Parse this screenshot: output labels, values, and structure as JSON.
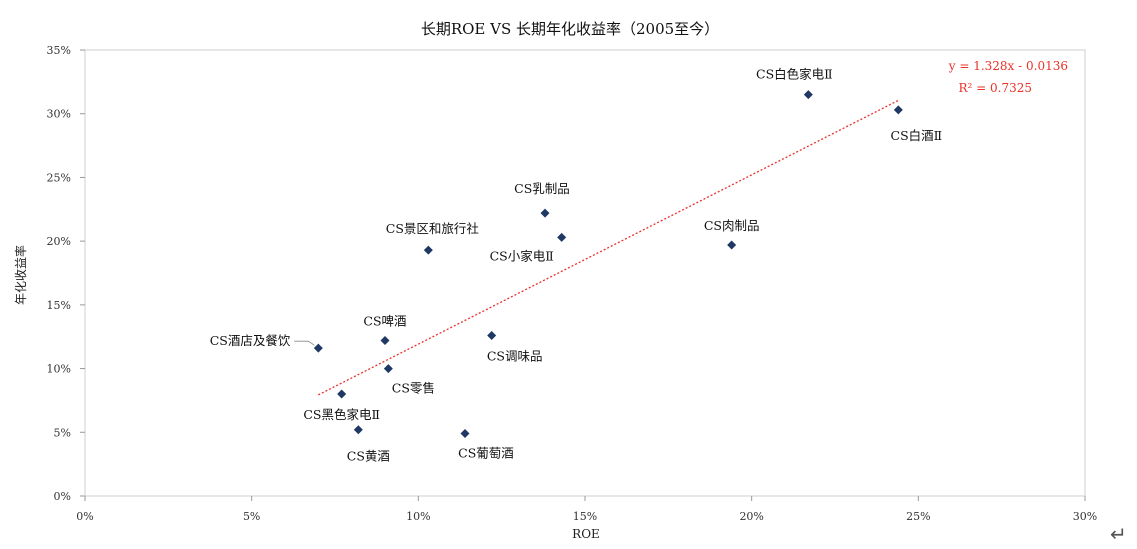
{
  "chart_data": {
    "type": "scatter",
    "title": "长期ROE VS 长期年化收益率（2005至今）",
    "xlabel": "ROE",
    "ylabel": "年化收益率",
    "xlim": [
      0,
      0.3
    ],
    "ylim": [
      0,
      0.35
    ],
    "x_ticks": [
      "0%",
      "5%",
      "10%",
      "15%",
      "20%",
      "25%",
      "30%"
    ],
    "y_ticks": [
      "0%",
      "5%",
      "10%",
      "15%",
      "20%",
      "25%",
      "30%",
      "35%"
    ],
    "grid": false,
    "marker_color": "#1f3864",
    "points": [
      {
        "label": "CS白色家电Ⅱ",
        "x": 0.217,
        "y": 0.315
      },
      {
        "label": "CS白酒Ⅱ",
        "x": 0.244,
        "y": 0.303
      },
      {
        "label": "CS乳制品",
        "x": 0.138,
        "y": 0.222
      },
      {
        "label": "CS小家电Ⅱ",
        "x": 0.143,
        "y": 0.203
      },
      {
        "label": "CS景区和旅行社",
        "x": 0.103,
        "y": 0.193
      },
      {
        "label": "CS肉制品",
        "x": 0.194,
        "y": 0.197
      },
      {
        "label": "CS啤酒",
        "x": 0.09,
        "y": 0.122
      },
      {
        "label": "CS酒店及餐饮",
        "x": 0.07,
        "y": 0.116
      },
      {
        "label": "CS调味品",
        "x": 0.122,
        "y": 0.126
      },
      {
        "label": "CS零售",
        "x": 0.091,
        "y": 0.1
      },
      {
        "label": "CS黑色家电Ⅱ",
        "x": 0.077,
        "y": 0.08
      },
      {
        "label": "CS黄酒",
        "x": 0.082,
        "y": 0.052
      },
      {
        "label": "CS葡萄酒",
        "x": 0.114,
        "y": 0.049
      }
    ],
    "trendline": {
      "slope": 1.328,
      "intercept": -0.0136,
      "x_range": [
        0.07,
        0.244
      ],
      "color": "#e8322a",
      "style": "dotted",
      "equation": "y = 1.328x - 0.0136",
      "r2": "R² = 0.7325"
    }
  }
}
